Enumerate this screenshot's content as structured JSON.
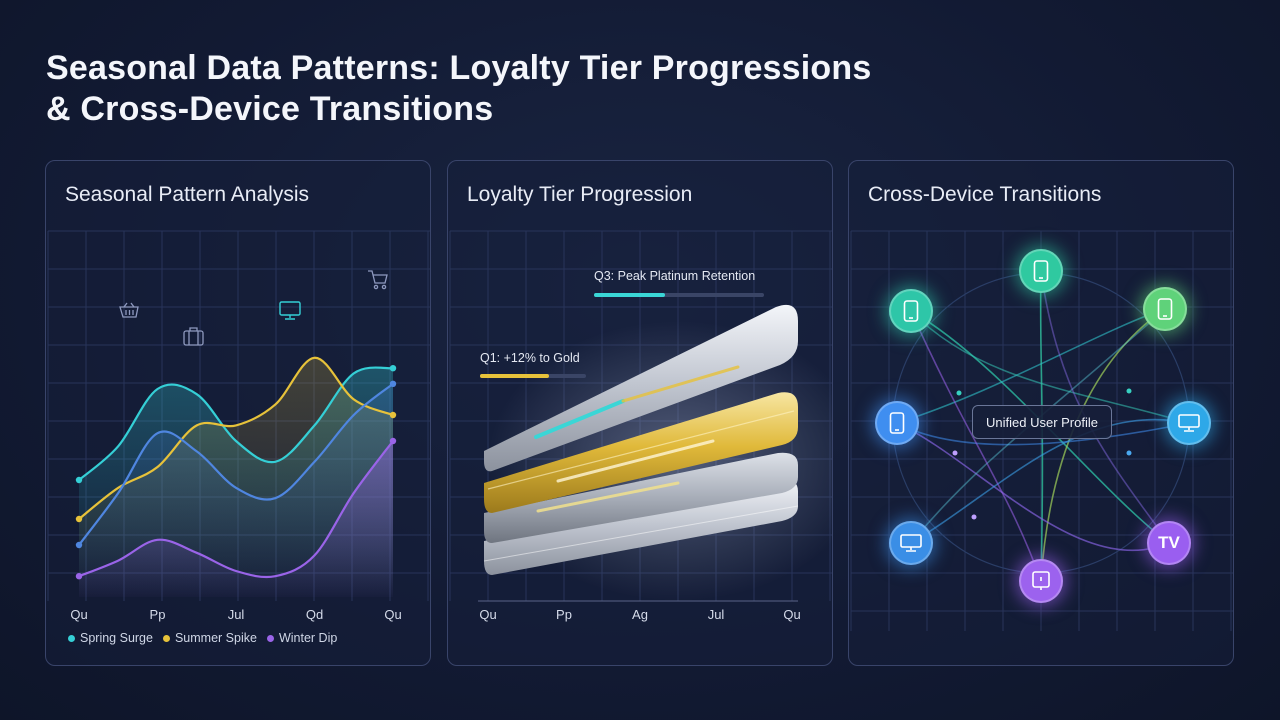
{
  "title": {
    "line1": "Seasonal Data Patterns: Loyalty Tier Progressions",
    "line2": "& Cross-Device Transitions"
  },
  "panels": {
    "seasonal": {
      "title": "Seasonal Pattern Analysis",
      "icons": [
        "basket-icon",
        "suitcase-icon",
        "monitor-icon",
        "cart-icon"
      ]
    },
    "loyalty": {
      "title": "Loyalty Tier Progression",
      "annotations": [
        {
          "label": "Q3: Peak Platinum Retention",
          "color": "#3ad6d6",
          "fill": 0.42
        },
        {
          "label": "Q1: +12% to Gold",
          "color": "#e7c23a",
          "fill": 0.65
        }
      ],
      "ticks": [
        "Qu",
        "Pp",
        "Ag",
        "Jul",
        "Qu"
      ]
    },
    "devices": {
      "title": "Cross-Device Transitions",
      "hub_label": "Unified User Profile",
      "nodes": [
        {
          "id": "top",
          "icon": "smartphone-icon",
          "color": "#2fc9a0"
        },
        {
          "id": "upper-left",
          "icon": "smartphone-icon",
          "color": "#2ec6a8"
        },
        {
          "id": "upper-right",
          "icon": "smartphone-icon",
          "color": "#5fd27a"
        },
        {
          "id": "mid-left",
          "icon": "smartphone-icon",
          "color": "#3f8ef0"
        },
        {
          "id": "mid-right",
          "icon": "desktop-icon",
          "color": "#2ea8e8"
        },
        {
          "id": "lower-left",
          "icon": "desktop-icon",
          "color": "#3a8ee6"
        },
        {
          "id": "lower-right",
          "icon": "tv-icon",
          "color": "#9a5ef0",
          "text": "TV"
        },
        {
          "id": "bottom",
          "icon": "tablet-icon",
          "color": "#9c62ee"
        }
      ]
    }
  },
  "chart_data": {
    "type": "area",
    "title": "Seasonal Pattern Analysis",
    "categories": [
      "Qu",
      "Pp",
      "Jul",
      "Qd",
      "Qu"
    ],
    "x": [
      0,
      1,
      2,
      3,
      4,
      5,
      6,
      7,
      8
    ],
    "series": [
      {
        "name": "Spring Surge",
        "color": "#35cfd6",
        "values": [
          45,
          58,
          80,
          78,
          60,
          52,
          66,
          86,
          88
        ]
      },
      {
        "name": "Summer Spike",
        "color": "#e7c23a",
        "values": [
          30,
          42,
          50,
          66,
          66,
          74,
          92,
          76,
          70
        ]
      },
      {
        "name": "",
        "color": "#4f86e0",
        "values": [
          20,
          40,
          63,
          56,
          42,
          38,
          52,
          70,
          82
        ]
      },
      {
        "name": "Winter Dip",
        "color": "#9a64e8",
        "values": [
          8,
          14,
          22,
          17,
          10,
          8,
          16,
          40,
          60
        ]
      }
    ],
    "ylim": [
      0,
      110
    ],
    "grid": true,
    "legend": "bottom"
  }
}
